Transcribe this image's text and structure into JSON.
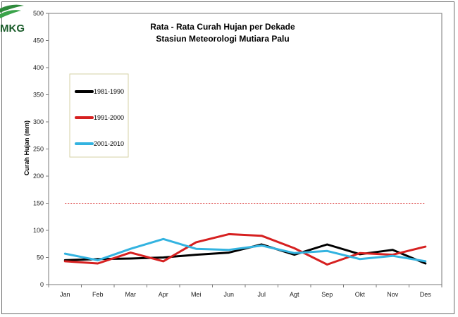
{
  "logo": {
    "text": "MKG"
  },
  "chart_data": {
    "type": "line",
    "title": "Rata - Rata Curah Hujan per Dekade",
    "subtitle": "Stasiun Meteorologi Mutiara Palu",
    "xlabel": "",
    "ylabel": "Curah Hujan (mm)",
    "categories": [
      "Jan",
      "Feb",
      "Mar",
      "Apr",
      "Mei",
      "Jun",
      "Jul",
      "Agt",
      "Sep",
      "Okt",
      "Nov",
      "Des"
    ],
    "ylim": [
      0,
      500
    ],
    "yticks": [
      0,
      50,
      100,
      150,
      200,
      250,
      300,
      350,
      400,
      450,
      500
    ],
    "grid": false,
    "legend_position": "top-left",
    "reference_line": {
      "value": 150,
      "color": "#d62020",
      "style": "dotted"
    },
    "series": [
      {
        "name": "1981-1990",
        "color": "#000000",
        "values": [
          45,
          47,
          48,
          50,
          55,
          59,
          74,
          55,
          74,
          56,
          64,
          39
        ]
      },
      {
        "name": "1991-2000",
        "color": "#d62020",
        "values": [
          43,
          39,
          59,
          43,
          78,
          93,
          90,
          67,
          37,
          58,
          55,
          70
        ]
      },
      {
        "name": "2001-2010",
        "color": "#33b3e0",
        "values": [
          57,
          45,
          66,
          84,
          66,
          64,
          72,
          58,
          62,
          47,
          53,
          43
        ]
      }
    ]
  }
}
